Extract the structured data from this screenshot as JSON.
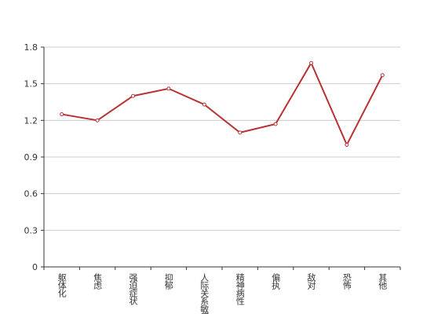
{
  "chart_data": {
    "type": "line",
    "categories": [
      "躯体化",
      "焦虑",
      "强迫症状",
      "抑郁",
      "人际关系敏感",
      "精神病性",
      "偏执",
      "敌对",
      "恐怖",
      "其他"
    ],
    "values": [
      1.25,
      1.2,
      1.4,
      1.46,
      1.33,
      1.1,
      1.17,
      1.67,
      1.0,
      1.57
    ],
    "color": "#b83232",
    "ylim": [
      0,
      1.8
    ],
    "yticks": [
      0,
      {
        "value": 0.3,
        "label": "0.3"
      },
      {
        "value": 0.6,
        "label": "0.6"
      },
      {
        "value": 0.9,
        "label": "0.9"
      },
      {
        "value": 1.2,
        "label": "1.2"
      },
      {
        "value": 1.5,
        "label": "1.5"
      },
      {
        "value": 1.8,
        "label": "1.8"
      }
    ],
    "grid": true
  }
}
